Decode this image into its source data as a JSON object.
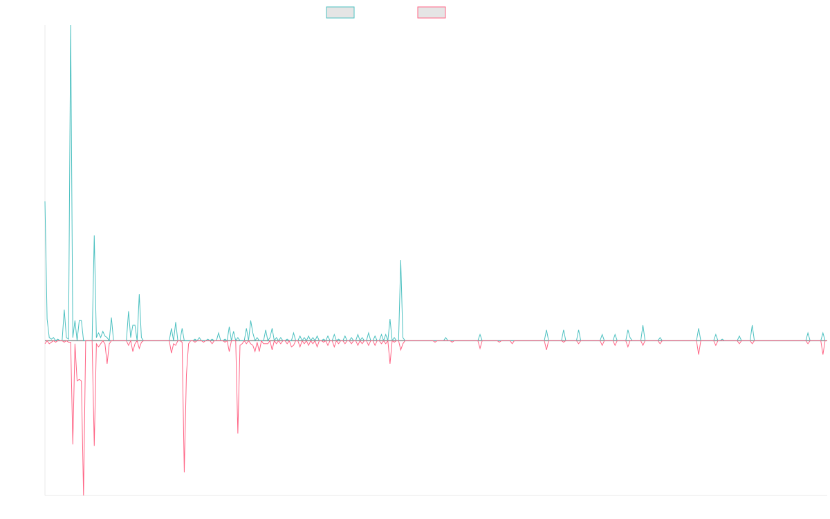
{
  "chart_data": {
    "type": "line",
    "title": "",
    "xlabel": "",
    "ylabel": "",
    "x_count": 366,
    "ylim": [
      -1.0,
      2.04
    ],
    "grid": false,
    "legend": {
      "placement": "top-center",
      "entries": [
        "",
        ""
      ]
    },
    "series": [
      {
        "color": "#4bc0c0",
        "fill": "#e5e5e5",
        "spikes": [
          [
            0,
            0.9
          ],
          [
            1,
            0.14
          ],
          [
            2,
            0.02
          ],
          [
            3,
            0.01
          ],
          [
            4,
            0.02
          ],
          [
            5,
            0.0
          ],
          [
            6,
            0.01
          ],
          [
            9,
            0.2
          ],
          [
            10,
            0.02
          ],
          [
            11,
            0.01
          ],
          [
            12,
            2.04
          ],
          [
            13,
            0.02
          ],
          [
            14,
            0.13
          ],
          [
            16,
            0.13
          ],
          [
            17,
            0.13
          ],
          [
            18,
            0.0
          ],
          [
            22,
            0.0
          ],
          [
            23,
            0.68
          ],
          [
            24,
            0.02
          ],
          [
            25,
            0.05
          ],
          [
            26,
            0.02
          ],
          [
            27,
            0.06
          ],
          [
            28,
            0.03
          ],
          [
            29,
            0.02
          ],
          [
            31,
            0.15
          ],
          [
            33,
            0.0
          ],
          [
            39,
            0.19
          ],
          [
            40,
            0.02
          ],
          [
            41,
            0.1
          ],
          [
            42,
            0.1
          ],
          [
            44,
            0.3
          ],
          [
            45,
            0.02
          ],
          [
            59,
            0.08
          ],
          [
            61,
            0.12
          ],
          [
            64,
            0.08
          ],
          [
            70,
            0.01
          ],
          [
            72,
            0.02
          ],
          [
            76,
            0.01
          ],
          [
            78,
            0.01
          ],
          [
            81,
            0.05
          ],
          [
            84,
            0.01
          ],
          [
            86,
            0.09
          ],
          [
            88,
            0.06
          ],
          [
            90,
            0.02
          ],
          [
            94,
            0.08
          ],
          [
            96,
            0.13
          ],
          [
            97,
            0.05
          ],
          [
            99,
            0.02
          ],
          [
            103,
            0.07
          ],
          [
            105,
            0.02
          ],
          [
            106,
            0.08
          ],
          [
            108,
            0.02
          ],
          [
            110,
            0.02
          ],
          [
            113,
            0.01
          ],
          [
            116,
            0.05
          ],
          [
            119,
            0.03
          ],
          [
            121,
            0.02
          ],
          [
            123,
            0.03
          ],
          [
            125,
            0.02
          ],
          [
            127,
            0.03
          ],
          [
            130,
            0.01
          ],
          [
            132,
            0.03
          ],
          [
            135,
            0.04
          ],
          [
            137,
            0.01
          ],
          [
            140,
            0.03
          ],
          [
            143,
            0.02
          ],
          [
            146,
            0.04
          ],
          [
            148,
            0.02
          ],
          [
            151,
            0.05
          ],
          [
            154,
            0.03
          ],
          [
            157,
            0.04
          ],
          [
            159,
            0.04
          ],
          [
            161,
            0.14
          ],
          [
            163,
            0.02
          ],
          [
            166,
            0.52
          ],
          [
            167,
            0.02
          ],
          [
            187,
            0.02
          ],
          [
            203,
            0.04
          ],
          [
            234,
            0.07
          ],
          [
            242,
            0.07
          ],
          [
            249,
            0.07
          ],
          [
            260,
            0.04
          ],
          [
            266,
            0.04
          ],
          [
            272,
            0.07
          ],
          [
            273,
            0.02
          ],
          [
            279,
            0.1
          ],
          [
            287,
            0.02
          ],
          [
            305,
            0.08
          ],
          [
            313,
            0.04
          ],
          [
            316,
            0.01
          ],
          [
            324,
            0.03
          ],
          [
            330,
            0.1
          ],
          [
            356,
            0.05
          ],
          [
            363,
            0.05
          ]
        ]
      },
      {
        "color": "#ff6384",
        "fill": "#e5e5e5",
        "spikes": [
          [
            0,
            -0.02
          ],
          [
            1,
            0.0
          ],
          [
            2,
            -0.02
          ],
          [
            3,
            -0.01
          ],
          [
            4,
            0.0
          ],
          [
            5,
            -0.01
          ],
          [
            9,
            -0.01
          ],
          [
            10,
            0.0
          ],
          [
            11,
            -0.01
          ],
          [
            12,
            -0.01
          ],
          [
            13,
            -0.67
          ],
          [
            14,
            -0.02
          ],
          [
            15,
            -0.26
          ],
          [
            16,
            -0.25
          ],
          [
            17,
            -0.26
          ],
          [
            18,
            -1.0
          ],
          [
            19,
            0.0
          ],
          [
            22,
            0.0
          ],
          [
            23,
            -0.68
          ],
          [
            24,
            -0.02
          ],
          [
            25,
            -0.04
          ],
          [
            26,
            -0.02
          ],
          [
            28,
            -0.02
          ],
          [
            29,
            -0.15
          ],
          [
            30,
            -0.02
          ],
          [
            39,
            -0.03
          ],
          [
            40,
            0.0
          ],
          [
            41,
            -0.07
          ],
          [
            42,
            -0.02
          ],
          [
            44,
            -0.05
          ],
          [
            45,
            -0.01
          ],
          [
            59,
            -0.08
          ],
          [
            60,
            -0.02
          ],
          [
            61,
            -0.03
          ],
          [
            64,
            -0.01
          ],
          [
            65,
            -0.85
          ],
          [
            66,
            -0.22
          ],
          [
            67,
            -0.02
          ],
          [
            70,
            -0.01
          ],
          [
            74,
            -0.01
          ],
          [
            78,
            -0.02
          ],
          [
            84,
            -0.01
          ],
          [
            86,
            -0.07
          ],
          [
            90,
            -0.6
          ],
          [
            91,
            -0.03
          ],
          [
            92,
            -0.02
          ],
          [
            94,
            -0.02
          ],
          [
            96,
            -0.02
          ],
          [
            97,
            -0.03
          ],
          [
            98,
            -0.07
          ],
          [
            99,
            -0.01
          ],
          [
            100,
            -0.07
          ],
          [
            101,
            0.0
          ],
          [
            102,
            -0.02
          ],
          [
            103,
            -0.02
          ],
          [
            104,
            -0.02
          ],
          [
            106,
            -0.06
          ],
          [
            108,
            -0.02
          ],
          [
            110,
            -0.02
          ],
          [
            113,
            -0.02
          ],
          [
            115,
            -0.04
          ],
          [
            116,
            -0.03
          ],
          [
            119,
            -0.04
          ],
          [
            121,
            -0.02
          ],
          [
            123,
            -0.03
          ],
          [
            125,
            -0.02
          ],
          [
            127,
            -0.04
          ],
          [
            130,
            -0.01
          ],
          [
            132,
            -0.03
          ],
          [
            135,
            -0.04
          ],
          [
            137,
            -0.02
          ],
          [
            140,
            -0.02
          ],
          [
            143,
            -0.02
          ],
          [
            146,
            -0.03
          ],
          [
            148,
            -0.02
          ],
          [
            151,
            -0.03
          ],
          [
            154,
            -0.03
          ],
          [
            157,
            -0.02
          ],
          [
            159,
            -0.02
          ],
          [
            161,
            -0.15
          ],
          [
            163,
            -0.01
          ],
          [
            166,
            -0.06
          ],
          [
            167,
            -0.02
          ],
          [
            182,
            -0.01
          ],
          [
            190,
            -0.01
          ],
          [
            203,
            -0.05
          ],
          [
            212,
            -0.01
          ],
          [
            218,
            -0.02
          ],
          [
            234,
            -0.06
          ],
          [
            242,
            -0.01
          ],
          [
            249,
            -0.02
          ],
          [
            260,
            -0.03
          ],
          [
            266,
            -0.03
          ],
          [
            272,
            -0.04
          ],
          [
            279,
            -0.03
          ],
          [
            287,
            -0.02
          ],
          [
            305,
            -0.09
          ],
          [
            313,
            -0.03
          ],
          [
            324,
            -0.02
          ],
          [
            330,
            -0.02
          ],
          [
            356,
            -0.02
          ],
          [
            363,
            -0.09
          ]
        ]
      }
    ]
  }
}
